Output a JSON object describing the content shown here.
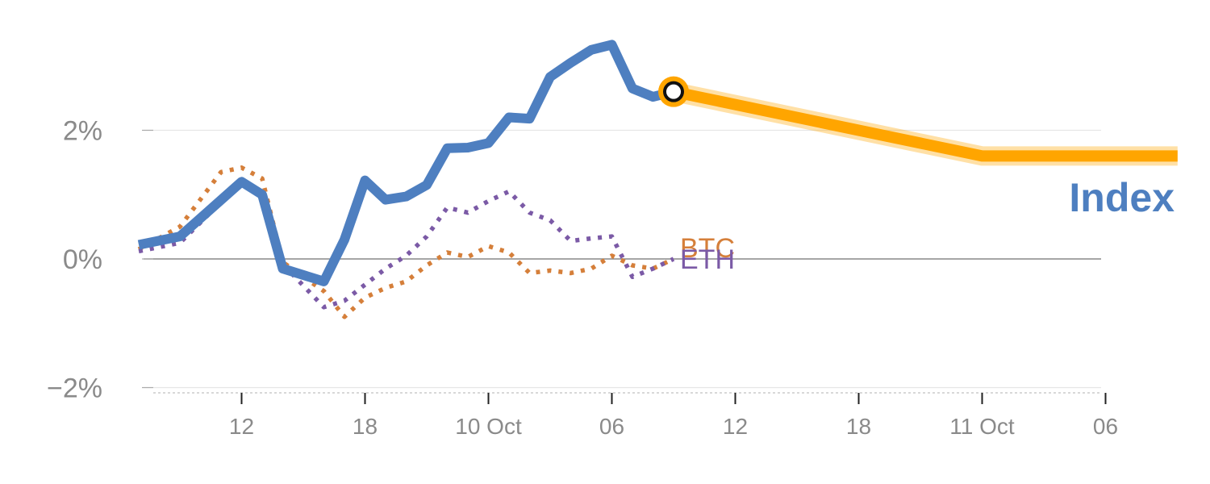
{
  "chart_data": {
    "type": "line",
    "y_unit": "%",
    "ylim": [
      -2,
      3.5
    ],
    "y_ticks": [
      {
        "value": 2,
        "label": "2%"
      },
      {
        "value": 0,
        "label": "0%"
      },
      {
        "value": -2,
        "label": "−2%"
      }
    ],
    "x_ticks": [
      {
        "x": "2023-10-09T12:00",
        "label": "12"
      },
      {
        "x": "2023-10-09T18:00",
        "label": "18"
      },
      {
        "x": "2023-10-10T00:00",
        "label": "10 Oct"
      },
      {
        "x": "2023-10-10T06:00",
        "label": "06"
      },
      {
        "x": "2023-10-10T12:00",
        "label": "12"
      },
      {
        "x": "2023-10-10T18:00",
        "label": "18"
      },
      {
        "x": "2023-10-11T00:00",
        "label": "11 Oct"
      },
      {
        "x": "2023-10-11T06:00",
        "label": "06"
      }
    ],
    "x_range": [
      "2023-10-09T06:00",
      "2023-10-11T12:00"
    ],
    "series": [
      {
        "name": "Index",
        "label": "Index",
        "color": "#4e7fc0",
        "style": "solid",
        "points": [
          [
            "2023-10-09T07:00",
            0.22
          ],
          [
            "2023-10-09T09:00",
            0.35
          ],
          [
            "2023-10-09T12:00",
            1.2
          ],
          [
            "2023-10-09T13:00",
            1.0
          ],
          [
            "2023-10-09T14:00",
            -0.15
          ],
          [
            "2023-10-09T16:00",
            -0.35
          ],
          [
            "2023-10-09T17:00",
            0.3
          ],
          [
            "2023-10-09T18:00",
            1.22
          ],
          [
            "2023-10-09T19:00",
            0.92
          ],
          [
            "2023-10-09T20:00",
            0.97
          ],
          [
            "2023-10-09T21:00",
            1.15
          ],
          [
            "2023-10-09T22:00",
            1.72
          ],
          [
            "2023-10-09T23:00",
            1.73
          ],
          [
            "2023-10-10T00:00",
            1.8
          ],
          [
            "2023-10-10T01:00",
            2.2
          ],
          [
            "2023-10-10T02:00",
            2.18
          ],
          [
            "2023-10-10T03:00",
            2.83
          ],
          [
            "2023-10-10T04:00",
            3.05
          ],
          [
            "2023-10-10T05:00",
            3.25
          ],
          [
            "2023-10-10T06:00",
            3.33
          ],
          [
            "2023-10-10T07:00",
            2.65
          ],
          [
            "2023-10-10T08:00",
            2.52
          ],
          [
            "2023-10-10T09:00",
            2.6
          ]
        ]
      },
      {
        "name": "Forecast",
        "color": "#ffa500",
        "style": "forecast",
        "points": [
          [
            "2023-10-10T09:00",
            2.6
          ],
          [
            "2023-10-11T00:00",
            1.6
          ],
          [
            "2023-10-11T09:30",
            1.6
          ]
        ]
      },
      {
        "name": "BTC",
        "label": "BTC",
        "color": "#d57f3a",
        "style": "dotted",
        "points": [
          [
            "2023-10-09T07:00",
            0.15
          ],
          [
            "2023-10-09T09:00",
            0.5
          ],
          [
            "2023-10-09T11:00",
            1.35
          ],
          [
            "2023-10-09T12:00",
            1.42
          ],
          [
            "2023-10-09T13:00",
            1.25
          ],
          [
            "2023-10-09T14:00",
            -0.05
          ],
          [
            "2023-10-09T16:00",
            -0.5
          ],
          [
            "2023-10-09T17:00",
            -0.9
          ],
          [
            "2023-10-09T18:00",
            -0.6
          ],
          [
            "2023-10-09T19:00",
            -0.45
          ],
          [
            "2023-10-09T20:00",
            -0.35
          ],
          [
            "2023-10-09T21:00",
            -0.1
          ],
          [
            "2023-10-09T22:00",
            0.1
          ],
          [
            "2023-10-09T23:00",
            0.03
          ],
          [
            "2023-10-10T00:00",
            0.2
          ],
          [
            "2023-10-10T01:00",
            0.1
          ],
          [
            "2023-10-10T02:00",
            -0.22
          ],
          [
            "2023-10-10T03:00",
            -0.18
          ],
          [
            "2023-10-10T04:00",
            -0.22
          ],
          [
            "2023-10-10T05:00",
            -0.15
          ],
          [
            "2023-10-10T06:00",
            0.05
          ],
          [
            "2023-10-10T07:00",
            -0.1
          ],
          [
            "2023-10-10T08:00",
            -0.15
          ],
          [
            "2023-10-10T09:00",
            0.0
          ]
        ]
      },
      {
        "name": "ETH",
        "label": "ETH",
        "color": "#7b5aa6",
        "style": "dotted",
        "points": [
          [
            "2023-10-09T07:00",
            0.12
          ],
          [
            "2023-10-09T09:00",
            0.25
          ],
          [
            "2023-10-09T12:00",
            1.2
          ],
          [
            "2023-10-09T13:00",
            0.95
          ],
          [
            "2023-10-09T14:00",
            -0.08
          ],
          [
            "2023-10-09T16:00",
            -0.75
          ],
          [
            "2023-10-09T17:00",
            -0.65
          ],
          [
            "2023-10-09T18:00",
            -0.4
          ],
          [
            "2023-10-09T19:00",
            -0.15
          ],
          [
            "2023-10-09T20:00",
            0.05
          ],
          [
            "2023-10-09T21:00",
            0.35
          ],
          [
            "2023-10-09T22:00",
            0.8
          ],
          [
            "2023-10-09T23:00",
            0.72
          ],
          [
            "2023-10-10T00:00",
            0.9
          ],
          [
            "2023-10-10T01:00",
            1.05
          ],
          [
            "2023-10-10T02:00",
            0.72
          ],
          [
            "2023-10-10T03:00",
            0.6
          ],
          [
            "2023-10-10T04:00",
            0.28
          ],
          [
            "2023-10-10T05:00",
            0.32
          ],
          [
            "2023-10-10T06:00",
            0.35
          ],
          [
            "2023-10-10T07:00",
            -0.28
          ],
          [
            "2023-10-10T08:00",
            -0.15
          ],
          [
            "2023-10-10T09:00",
            0.0
          ]
        ]
      }
    ],
    "marker": {
      "x": "2023-10-10T09:00",
      "y": 2.6,
      "color": "#ffa500"
    },
    "grid": true,
    "zero_line": true
  }
}
